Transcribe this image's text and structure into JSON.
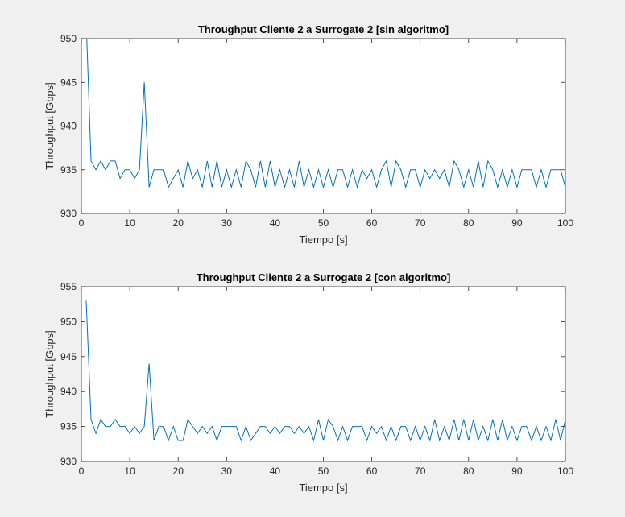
{
  "chart_data": [
    {
      "type": "line",
      "title": "Throughput Cliente 2 a Surrogate 2 [sin algoritmo]",
      "xlabel": "Tiempo [s]",
      "ylabel": "Throughput [Gbps]",
      "xlim": [
        0,
        100
      ],
      "ylim": [
        930,
        950
      ],
      "xticks": [
        "0",
        "10",
        "20",
        "30",
        "40",
        "50",
        "60",
        "70",
        "80",
        "90",
        "100"
      ],
      "yticks": [
        "930",
        "935",
        "940",
        "945",
        "950"
      ],
      "grid": false,
      "series": [
        {
          "color": "#0072bd",
          "x": [
            1,
            2,
            3,
            4,
            5,
            6,
            7,
            8,
            9,
            10,
            11,
            12,
            13,
            14,
            15,
            16,
            17,
            18,
            19,
            20,
            21,
            22,
            23,
            24,
            25,
            26,
            27,
            28,
            29,
            30,
            31,
            32,
            33,
            34,
            35,
            36,
            37,
            38,
            39,
            40,
            41,
            42,
            43,
            44,
            45,
            46,
            47,
            48,
            49,
            50,
            51,
            52,
            53,
            54,
            55,
            56,
            57,
            58,
            59,
            60,
            61,
            62,
            63,
            64,
            65,
            66,
            67,
            68,
            69,
            70,
            71,
            72,
            73,
            74,
            75,
            76,
            77,
            78,
            79,
            80,
            81,
            82,
            83,
            84,
            85,
            86,
            87,
            88,
            89,
            90,
            91,
            92,
            93,
            94,
            95,
            96,
            97,
            98,
            99,
            100
          ],
          "y": [
            952,
            936,
            935,
            936,
            935,
            936,
            936,
            934,
            935,
            935,
            934,
            935,
            945,
            933,
            935,
            935,
            935,
            933,
            934,
            935,
            933,
            936,
            934,
            935,
            933,
            936,
            933,
            936,
            933,
            935,
            933,
            935,
            933,
            936,
            935,
            933,
            936,
            933,
            936,
            933,
            935,
            933,
            935,
            933,
            936,
            933,
            935,
            933,
            935,
            933,
            935,
            933,
            935,
            935,
            933,
            935,
            933,
            935,
            934,
            935,
            933,
            935,
            936,
            933,
            936,
            935,
            933,
            935,
            935,
            933,
            935,
            934,
            935,
            934,
            935,
            933,
            936,
            935,
            933,
            935,
            933,
            936,
            933,
            936,
            935,
            933,
            935,
            933,
            935,
            933,
            935,
            935,
            935,
            933,
            935,
            933,
            935,
            935,
            935,
            933
          ]
        }
      ]
    },
    {
      "type": "line",
      "title": "Throughput Cliente 2 a Surrogate 2 [con algoritmo]",
      "xlabel": "Tiempo [s]",
      "ylabel": "Throughput [Gbps]",
      "xlim": [
        0,
        100
      ],
      "ylim": [
        930,
        955
      ],
      "xticks": [
        "0",
        "10",
        "20",
        "30",
        "40",
        "50",
        "60",
        "70",
        "80",
        "90",
        "100"
      ],
      "yticks": [
        "930",
        "935",
        "940",
        "945",
        "950",
        "955"
      ],
      "grid": false,
      "series": [
        {
          "color": "#0072bd",
          "x": [
            1,
            2,
            3,
            4,
            5,
            6,
            7,
            8,
            9,
            10,
            11,
            12,
            13,
            14,
            15,
            16,
            17,
            18,
            19,
            20,
            21,
            22,
            23,
            24,
            25,
            26,
            27,
            28,
            29,
            30,
            31,
            32,
            33,
            34,
            35,
            36,
            37,
            38,
            39,
            40,
            41,
            42,
            43,
            44,
            45,
            46,
            47,
            48,
            49,
            50,
            51,
            52,
            53,
            54,
            55,
            56,
            57,
            58,
            59,
            60,
            61,
            62,
            63,
            64,
            65,
            66,
            67,
            68,
            69,
            70,
            71,
            72,
            73,
            74,
            75,
            76,
            77,
            78,
            79,
            80,
            81,
            82,
            83,
            84,
            85,
            86,
            87,
            88,
            89,
            90,
            91,
            92,
            93,
            94,
            95,
            96,
            97,
            98,
            99,
            100
          ],
          "y": [
            953,
            936,
            934,
            936,
            935,
            935,
            936,
            935,
            935,
            934,
            935,
            934,
            935,
            944,
            933,
            935,
            935,
            933,
            935,
            933,
            933,
            936,
            935,
            934,
            935,
            934,
            935,
            933,
            935,
            935,
            935,
            935,
            933,
            935,
            933,
            934,
            935,
            935,
            934,
            935,
            934,
            935,
            935,
            934,
            935,
            934,
            935,
            933,
            936,
            933,
            936,
            935,
            933,
            935,
            933,
            935,
            935,
            935,
            933,
            935,
            934,
            935,
            933,
            935,
            933,
            935,
            935,
            933,
            935,
            933,
            935,
            933,
            936,
            933,
            935,
            933,
            936,
            933,
            936,
            933,
            936,
            933,
            935,
            933,
            936,
            933,
            936,
            933,
            935,
            933,
            935,
            935,
            933,
            935,
            933,
            935,
            933,
            936,
            933,
            936
          ]
        }
      ]
    }
  ]
}
